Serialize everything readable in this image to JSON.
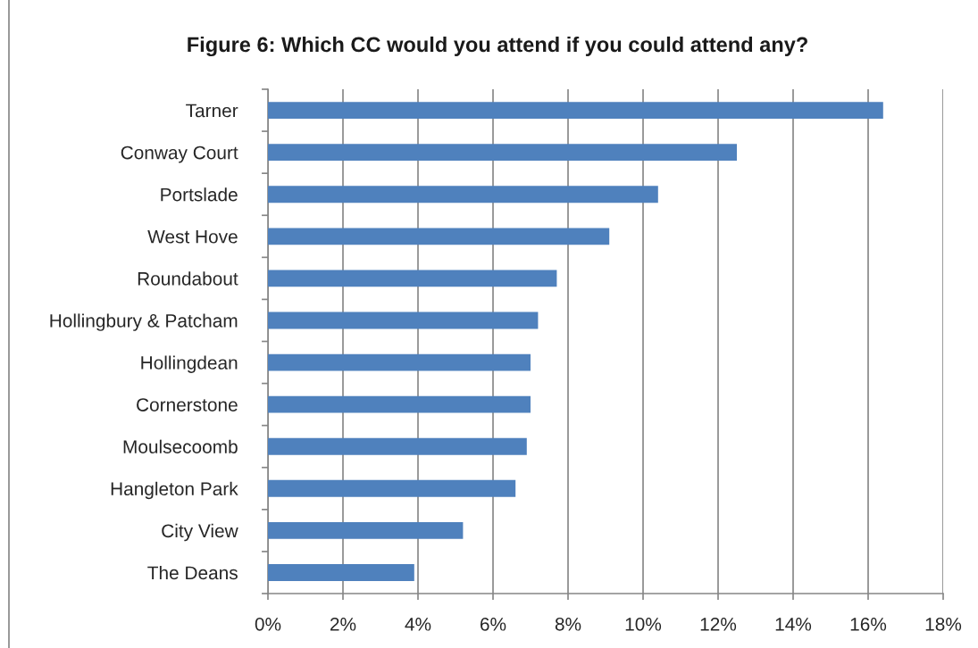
{
  "chart_data": {
    "type": "bar",
    "orientation": "horizontal",
    "title": "Figure 6: Which CC would you attend if you could attend any?",
    "categories": [
      "Tarner",
      "Conway Court",
      "Portslade",
      "West Hove",
      "Roundabout",
      "Hollingbury & Patcham",
      "Hollingdean",
      "Cornerstone",
      "Moulsecoomb",
      "Hangleton Park",
      "City View",
      "The Deans"
    ],
    "values": [
      16.4,
      12.5,
      10.4,
      9.1,
      7.7,
      7.2,
      7.0,
      7.0,
      6.9,
      6.6,
      5.2,
      3.9
    ],
    "color": "#4f81bd",
    "xlim": [
      0,
      18
    ],
    "xticks": [
      {
        "value": 0,
        "label": "0%"
      },
      {
        "value": 2,
        "label": "2%"
      },
      {
        "value": 4,
        "label": "4%"
      },
      {
        "value": 6,
        "label": "6%"
      },
      {
        "value": 8,
        "label": "8%"
      },
      {
        "value": 10,
        "label": "10%"
      },
      {
        "value": 12,
        "label": "12%"
      },
      {
        "value": 14,
        "label": "14%"
      },
      {
        "value": 16,
        "label": "16%"
      },
      {
        "value": 18,
        "label": "18%"
      }
    ],
    "grid": "x"
  }
}
